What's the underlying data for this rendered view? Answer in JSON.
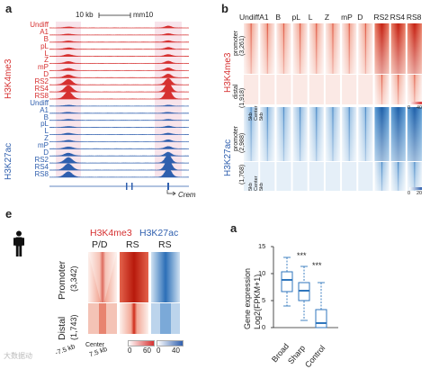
{
  "panels": {
    "a": {
      "letter": "a",
      "scale_label": "10 kb",
      "scale_chr": "mm10",
      "gene": "Crem",
      "stages": [
        "Undiff",
        "A1",
        "B",
        "pL",
        "L",
        "Z",
        "mP",
        "D",
        "RS2",
        "RS4",
        "RS8"
      ],
      "h3k4me3_label": "H3K4me3",
      "h3k27ac_label": "H3K27ac"
    },
    "b": {
      "letter": "b",
      "stages": [
        "Undiff",
        "A1",
        "B",
        "pL",
        "L",
        "Z",
        "mP",
        "D",
        "RS2",
        "RS4",
        "RS8"
      ],
      "h3k4me3_label": "H3K4me3",
      "h3k27ac_label": "H3K27ac",
      "promoter_top": "promoter",
      "promoter_top_n": "(3,261)",
      "distal_top": "distal",
      "distal_top_n": "(1,918)",
      "promoter_bot": "promoter",
      "promoter_bot_n": "(2,988)",
      "distal_bot": "distal",
      "distal_bot_n": "(1,768)",
      "kb_left": "5kb",
      "center": "Center",
      "kb_right": "5kb",
      "scale_top": "0",
      "scale_top2": "40",
      "scale_bot": "0",
      "scale_bot2": "20"
    },
    "e": {
      "letter": "e",
      "h3k4me3": "H3K4me3",
      "h3k27ac": "H3K27ac",
      "col_pd": "P/D",
      "col_rs1": "RS",
      "col_rs2": "RS",
      "promoter": "Promoter",
      "promoter_n": "(3,342)",
      "distal": "Distal",
      "distal_n": "(1,743)",
      "axis_left": "-7.5 kb",
      "axis_center": "Center",
      "axis_right": "7.5 kb",
      "scale_red_0": "0",
      "scale_red_1": "60",
      "scale_blue_0": "0",
      "scale_blue_1": "40"
    },
    "a2": {
      "letter": "a",
      "ylabel1": "Gene expression",
      "ylabel2": "Log2(FPKM+1)",
      "ticks": [
        "15",
        "10",
        "5",
        "0"
      ],
      "categories": [
        "Broad",
        "Sharp",
        "Control"
      ],
      "sig1": "***",
      "sig2": "***"
    }
  },
  "watermark": "大数据动"
}
